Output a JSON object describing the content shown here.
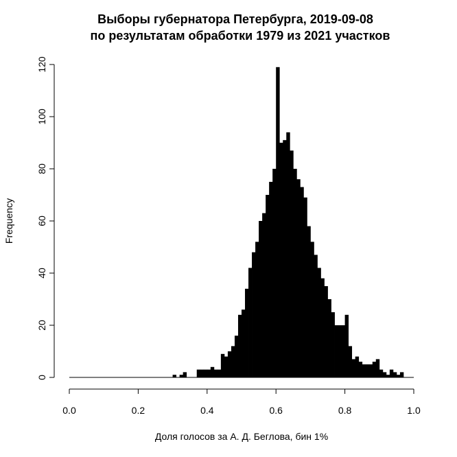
{
  "chart_data": {
    "type": "bar",
    "title": "Выборы губернатора Петербурга, 2019-09-08",
    "subtitle": "по результатам обработки 1979 из 2021 участков",
    "xlabel": "Доля голосов за А. Д. Беглова, бин 1%",
    "ylabel": "Frequency",
    "xlim": [
      0.0,
      1.0
    ],
    "ylim": [
      0,
      120
    ],
    "bin_width": 0.01,
    "x_ticks": [
      "0.0",
      "0.2",
      "0.4",
      "0.6",
      "0.8",
      "1.0"
    ],
    "y_ticks": [
      "0",
      "20",
      "40",
      "60",
      "80",
      "100",
      "120"
    ],
    "bin_starts": [
      0.0,
      0.01,
      0.02,
      0.03,
      0.04,
      0.05,
      0.06,
      0.07,
      0.08,
      0.09,
      0.1,
      0.11,
      0.12,
      0.13,
      0.14,
      0.15,
      0.16,
      0.17,
      0.18,
      0.19,
      0.2,
      0.21,
      0.22,
      0.23,
      0.24,
      0.25,
      0.26,
      0.27,
      0.28,
      0.29,
      0.3,
      0.31,
      0.32,
      0.33,
      0.34,
      0.35,
      0.36,
      0.37,
      0.38,
      0.39,
      0.4,
      0.41,
      0.42,
      0.43,
      0.44,
      0.45,
      0.46,
      0.47,
      0.48,
      0.49,
      0.5,
      0.51,
      0.52,
      0.53,
      0.54,
      0.55,
      0.56,
      0.57,
      0.58,
      0.59,
      0.6,
      0.61,
      0.62,
      0.63,
      0.64,
      0.65,
      0.66,
      0.67,
      0.68,
      0.69,
      0.7,
      0.71,
      0.72,
      0.73,
      0.74,
      0.75,
      0.76,
      0.77,
      0.78,
      0.79,
      0.8,
      0.81,
      0.82,
      0.83,
      0.84,
      0.85,
      0.86,
      0.87,
      0.88,
      0.89,
      0.9,
      0.91,
      0.92,
      0.93,
      0.94,
      0.95,
      0.96,
      0.97,
      0.98,
      0.99
    ],
    "values": [
      0,
      0,
      0,
      0,
      0,
      0,
      0,
      0,
      0,
      0,
      0,
      0,
      0,
      0,
      0,
      0,
      0,
      0,
      0,
      0,
      0,
      0,
      0,
      0,
      0,
      0,
      0,
      0,
      0,
      0,
      1,
      0,
      1,
      2,
      0,
      0,
      0,
      3,
      3,
      3,
      3,
      4,
      3,
      3,
      9,
      8,
      10,
      12,
      16,
      24,
      26,
      34,
      42,
      48,
      52,
      60,
      63,
      70,
      75,
      80,
      119,
      90,
      91,
      94,
      87,
      80,
      76,
      73,
      69,
      58,
      52,
      47,
      42,
      38,
      35,
      30,
      25,
      20,
      20,
      20,
      24,
      12,
      7,
      8,
      6,
      5,
      5,
      5,
      6,
      7,
      3,
      2,
      1,
      3,
      2,
      1,
      2,
      0,
      0,
      0
    ]
  }
}
